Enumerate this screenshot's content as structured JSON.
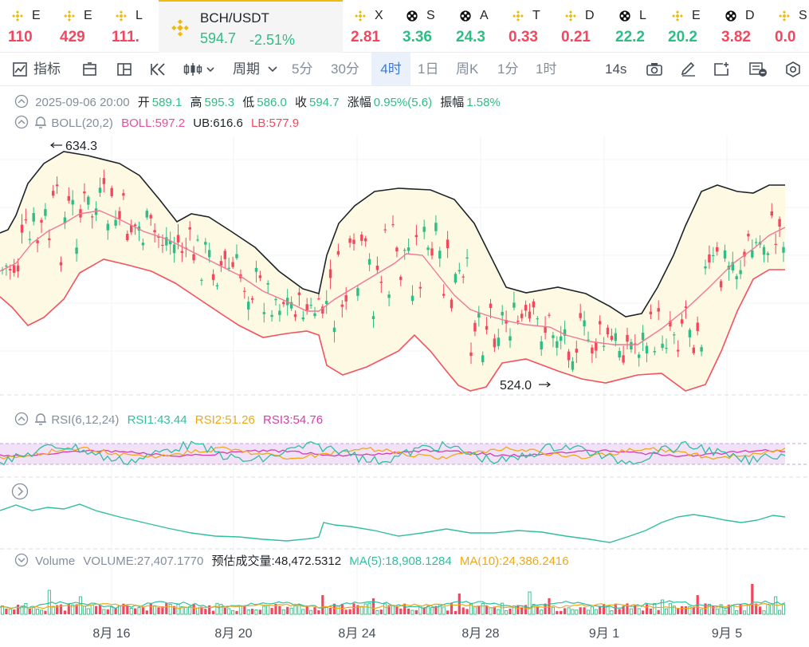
{
  "ticker": [
    {
      "sym": "E",
      "price": "110",
      "color": "#f6465d",
      "icon": "bnb-icon"
    },
    {
      "sym": "E",
      "price": "429",
      "color": "#f6465d",
      "icon": "bnb-icon"
    },
    {
      "sym": "L",
      "price": "111.",
      "color": "#f6465d",
      "icon": "bnb-icon"
    },
    {
      "sym": "BCH/USDT",
      "price": "594.7",
      "change": "-2.51%",
      "color": "#2ebd85",
      "icon": "bnb-icon",
      "active": true
    },
    {
      "sym": "X",
      "price": "2.81",
      "color": "#f6465d",
      "icon": "bnb-icon"
    },
    {
      "sym": "S",
      "price": "3.36",
      "color": "#2ebd85",
      "icon": "alpha-icon"
    },
    {
      "sym": "A",
      "price": "24.3",
      "color": "#2ebd85",
      "icon": "alpha-icon"
    },
    {
      "sym": "T",
      "price": "0.33",
      "color": "#f6465d",
      "icon": "bnb-icon"
    },
    {
      "sym": "D",
      "price": "0.21",
      "color": "#f6465d",
      "icon": "bnb-icon"
    },
    {
      "sym": "L",
      "price": "22.2",
      "color": "#2ebd85",
      "icon": "alpha-icon"
    },
    {
      "sym": "E",
      "price": "20.2",
      "color": "#2ebd85",
      "icon": "bnb-icon"
    },
    {
      "sym": "D",
      "price": "3.82",
      "color": "#f6465d",
      "icon": "alpha-icon"
    },
    {
      "sym": "S",
      "price": "0.0",
      "color": "#f6465d",
      "icon": "bnb-icon"
    }
  ],
  "toolbar": {
    "indicators": "指标",
    "period": "周期",
    "intervals": [
      "5分",
      "30分",
      "4时",
      "1日",
      "周K",
      "1分",
      "1时"
    ],
    "selected_interval": "4时",
    "countdown": "14s"
  },
  "ohlc": {
    "date": "2025-09-06 20:00",
    "open_label": "开",
    "open": "589.1",
    "high_label": "高",
    "high": "595.3",
    "low_label": "低",
    "low": "586.0",
    "close_label": "收",
    "close": "594.7",
    "change_label": "涨幅",
    "change": "0.95%(5.6)",
    "amp_label": "振幅",
    "amp": "1.58%"
  },
  "boll": {
    "name": "BOLL(20,2)",
    "mid": "BOLL:597.2",
    "ub": "UB:616.6",
    "lb": "LB:577.9"
  },
  "rsi": {
    "name": "RSI(6,12,24)",
    "rsi1": "RSI1:43.44",
    "rsi2": "RSI2:51.26",
    "rsi3": "RSI3:54.76"
  },
  "volume": {
    "name": "Volume",
    "vol": "VOLUME:27,407.1770",
    "est_label": "预估成交量:",
    "est": "48,472.5312",
    "ma5": "MA(5):18,908.1284",
    "ma10": "MA(10):24,386.2416"
  },
  "chart_data": {
    "type": "candlestick",
    "x_labels": [
      "8月 16",
      "8月 20",
      "8月 24",
      "8月 28",
      "9月 1",
      "9月 5"
    ],
    "high_marker": "634.3",
    "low_marker": "524.0",
    "colors": {
      "up": "#2ebd85",
      "down": "#f6465d",
      "upper_band": "#1e2329",
      "mid_band": "#f07896",
      "band_fill": "#fdf9e3",
      "rsi1": "#2fbfa0",
      "rsi2": "#f0a818",
      "rsi3": "#d63db0"
    }
  }
}
